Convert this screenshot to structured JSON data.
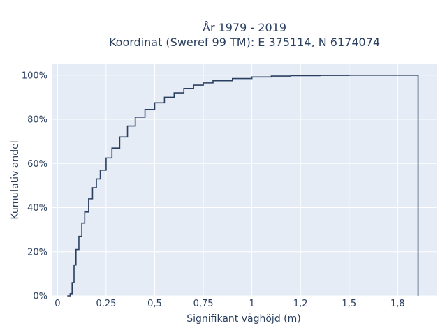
{
  "chart_data": {
    "type": "line",
    "subtype": "step-ecdf",
    "title_line1": "År 1979 - 2019",
    "title_line2": "Koordinat (Sweref 99 TM): E 375114, N 6174074",
    "xlabel": "Signifikant våghöjd (m)",
    "ylabel": "Kumulativ andel",
    "xlim": [
      -0.03,
      1.95
    ],
    "ylim": [
      0,
      1.05
    ],
    "x_ticks": [
      0,
      0.25,
      0.5,
      0.75,
      1,
      1.25,
      1.5,
      1.75
    ],
    "x_tick_labels": [
      "0",
      "0,25",
      "0,5",
      "0,75",
      "1",
      "1,2",
      "1,5",
      "1,8"
    ],
    "y_ticks": [
      0,
      0.2,
      0.4,
      0.6,
      0.8,
      1.0
    ],
    "y_tick_labels": [
      "0%",
      "20%",
      "40%",
      "60%",
      "80%",
      "100%"
    ],
    "grid": true,
    "background": "#e5ecf6",
    "line_color": "#2a3f5f",
    "x": [
      0.05,
      0.065,
      0.075,
      0.085,
      0.095,
      0.11,
      0.125,
      0.14,
      0.16,
      0.18,
      0.2,
      0.22,
      0.25,
      0.28,
      0.32,
      0.36,
      0.4,
      0.45,
      0.5,
      0.55,
      0.6,
      0.65,
      0.7,
      0.75,
      0.8,
      0.9,
      1.0,
      1.1,
      1.2,
      1.35,
      1.5,
      1.65,
      1.8,
      1.85,
      1.855
    ],
    "y": [
      0.0,
      0.01,
      0.06,
      0.14,
      0.21,
      0.27,
      0.33,
      0.38,
      0.44,
      0.49,
      0.53,
      0.57,
      0.625,
      0.67,
      0.72,
      0.77,
      0.81,
      0.845,
      0.875,
      0.9,
      0.92,
      0.94,
      0.955,
      0.965,
      0.975,
      0.985,
      0.992,
      0.996,
      0.998,
      0.999,
      1.0,
      1.0,
      1.0,
      1.0,
      0.0
    ]
  }
}
